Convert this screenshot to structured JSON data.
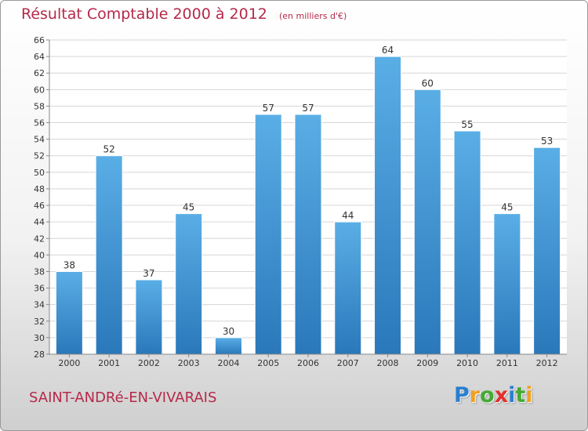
{
  "header": {
    "title": "Résultat Comptable 2000 à 2012",
    "subtitle": "(en milliers d'€)"
  },
  "footer": {
    "commune": "SAINT-ANDRé-EN-VIVARAIS",
    "logo_letters": [
      {
        "char": "P",
        "color": "#2a7fd0"
      },
      {
        "char": "r",
        "color": "#f0a020"
      },
      {
        "char": "o",
        "color": "#44aa33"
      },
      {
        "char": "x",
        "color": "#e03030"
      },
      {
        "char": "i",
        "color": "#2a7fd0"
      },
      {
        "char": "t",
        "color": "#44aa33"
      },
      {
        "char": "i",
        "color": "#f0a020"
      }
    ]
  },
  "colors": {
    "bar_top": "#5aaee6",
    "bar_bottom": "#2a78ba",
    "grid": "#d6d6d6",
    "axis_text": "#333333"
  },
  "chart_data": {
    "type": "bar",
    "categories": [
      "2000",
      "2001",
      "2002",
      "2003",
      "2004",
      "2005",
      "2006",
      "2007",
      "2008",
      "2009",
      "2010",
      "2011",
      "2012"
    ],
    "values": [
      38,
      52,
      37,
      45,
      30,
      57,
      57,
      44,
      64,
      60,
      55,
      45,
      53
    ],
    "ylim": [
      28,
      66
    ],
    "yticks": [
      28,
      30,
      32,
      34,
      36,
      38,
      40,
      42,
      44,
      46,
      48,
      50,
      52,
      54,
      56,
      58,
      60,
      62,
      64,
      66
    ],
    "grid": true,
    "data_labels": true
  }
}
